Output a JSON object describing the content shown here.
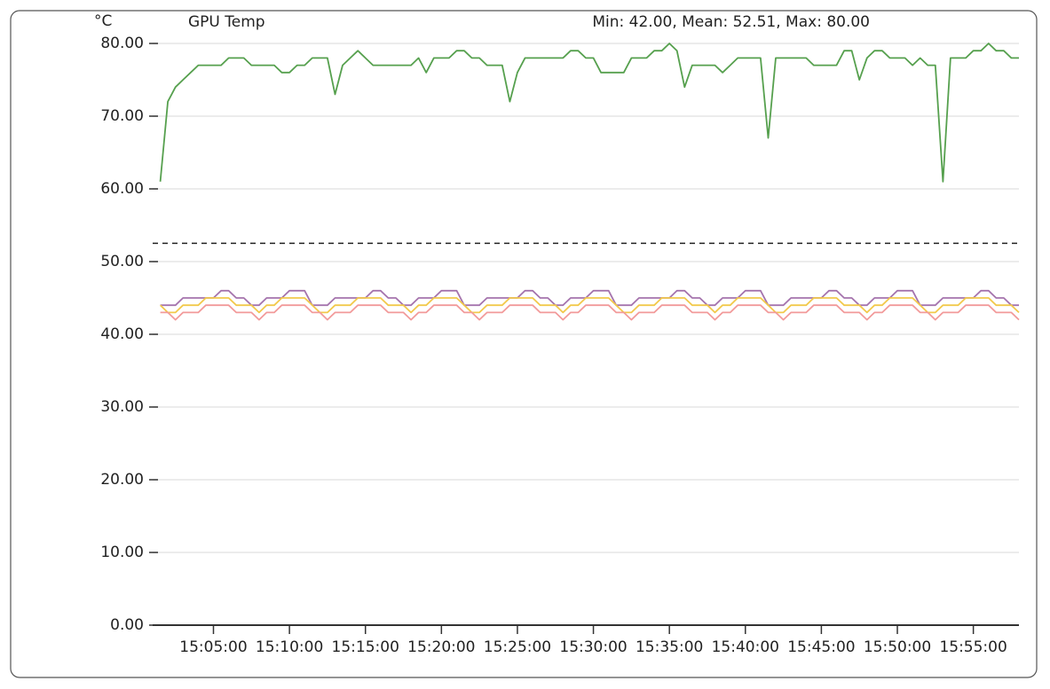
{
  "chart_data": {
    "type": "line",
    "title": "GPU Temp",
    "ylabel": "°C",
    "stats": "Min: 42.00, Mean: 52.51, Max: 80.00",
    "mean": 52.51,
    "xlim": [
      "15:01:00",
      "15:58:00"
    ],
    "xticks": [
      "15:05:00",
      "15:10:00",
      "15:15:00",
      "15:20:00",
      "15:25:00",
      "15:30:00",
      "15:35:00",
      "15:40:00",
      "15:45:00",
      "15:50:00",
      "15:55:00"
    ],
    "ylim": [
      0,
      80
    ],
    "yticks": [
      {
        "value": 0,
        "label": "0.00"
      },
      {
        "value": 10,
        "label": "10.00"
      },
      {
        "value": 20,
        "label": "20.00"
      },
      {
        "value": 30,
        "label": "30.00"
      },
      {
        "value": 40,
        "label": "40.00"
      },
      {
        "value": 50,
        "label": "50.00"
      },
      {
        "value": 60,
        "label": "60.00"
      },
      {
        "value": 70,
        "label": "70.00"
      },
      {
        "value": 80,
        "label": "80.00"
      }
    ],
    "grid": true,
    "x": [
      "15:01:30",
      "15:02:00",
      "15:02:30",
      "15:03:00",
      "15:03:30",
      "15:04:00",
      "15:04:30",
      "15:05:00",
      "15:05:30",
      "15:06:00",
      "15:06:30",
      "15:07:00",
      "15:07:30",
      "15:08:00",
      "15:08:30",
      "15:09:00",
      "15:09:30",
      "15:10:00",
      "15:10:30",
      "15:11:00",
      "15:11:30",
      "15:12:00",
      "15:12:30",
      "15:13:00",
      "15:13:30",
      "15:14:00",
      "15:14:30",
      "15:15:00",
      "15:15:30",
      "15:16:00",
      "15:16:30",
      "15:17:00",
      "15:17:30",
      "15:18:00",
      "15:18:30",
      "15:19:00",
      "15:19:30",
      "15:20:00",
      "15:20:30",
      "15:21:00",
      "15:21:30",
      "15:22:00",
      "15:22:30",
      "15:23:00",
      "15:23:30",
      "15:24:00",
      "15:24:30",
      "15:25:00",
      "15:25:30",
      "15:26:00",
      "15:26:30",
      "15:27:00",
      "15:27:30",
      "15:28:00",
      "15:28:30",
      "15:29:00",
      "15:29:30",
      "15:30:00",
      "15:30:30",
      "15:31:00",
      "15:31:30",
      "15:32:00",
      "15:32:30",
      "15:33:00",
      "15:33:30",
      "15:34:00",
      "15:34:30",
      "15:35:00",
      "15:35:30",
      "15:36:00",
      "15:36:30",
      "15:37:00",
      "15:37:30",
      "15:38:00",
      "15:38:30",
      "15:39:00",
      "15:39:30",
      "15:40:00",
      "15:40:30",
      "15:41:00",
      "15:41:30",
      "15:42:00",
      "15:42:30",
      "15:43:00",
      "15:43:30",
      "15:44:00",
      "15:44:30",
      "15:45:00",
      "15:45:30",
      "15:46:00",
      "15:46:30",
      "15:47:00",
      "15:47:30",
      "15:48:00",
      "15:48:30",
      "15:49:00",
      "15:49:30",
      "15:50:00",
      "15:50:30",
      "15:51:00",
      "15:51:30",
      "15:52:00",
      "15:52:30",
      "15:53:00",
      "15:53:30",
      "15:54:00",
      "15:54:30",
      "15:55:00",
      "15:55:30",
      "15:56:00",
      "15:56:30",
      "15:57:00",
      "15:57:30",
      "15:58:00"
    ],
    "series": [
      {
        "color": "#a574ad",
        "values": [
          44,
          44,
          44,
          45,
          45,
          45,
          45,
          45,
          46,
          46,
          45,
          45,
          44,
          44,
          45,
          45,
          45,
          46,
          46,
          46,
          44,
          44,
          44,
          45,
          45,
          45,
          45,
          45,
          46,
          46,
          45,
          45,
          44,
          44,
          45,
          45,
          45,
          46,
          46,
          46,
          44,
          44,
          44,
          45,
          45,
          45,
          45,
          45,
          46,
          46,
          45,
          45,
          44,
          44,
          45,
          45,
          45,
          46,
          46,
          46,
          44,
          44,
          44,
          45,
          45,
          45,
          45,
          45,
          46,
          46,
          45,
          45,
          44,
          44,
          45,
          45,
          45,
          46,
          46,
          46,
          44,
          44,
          44,
          45,
          45,
          45,
          45,
          45,
          46,
          46,
          45,
          45,
          44,
          44,
          45,
          45,
          45,
          46,
          46,
          46,
          44,
          44,
          44,
          45,
          45,
          45,
          45,
          45,
          46,
          46,
          45,
          45,
          44,
          44
        ]
      },
      {
        "color": "#f2c94c",
        "values": [
          44,
          43,
          43,
          44,
          44,
          44,
          45,
          45,
          45,
          45,
          44,
          44,
          44,
          43,
          44,
          44,
          45,
          45,
          45,
          45,
          44,
          43,
          43,
          44,
          44,
          44,
          45,
          45,
          45,
          45,
          44,
          44,
          44,
          43,
          44,
          44,
          45,
          45,
          45,
          45,
          44,
          43,
          43,
          44,
          44,
          44,
          45,
          45,
          45,
          45,
          44,
          44,
          44,
          43,
          44,
          44,
          45,
          45,
          45,
          45,
          44,
          43,
          43,
          44,
          44,
          44,
          45,
          45,
          45,
          45,
          44,
          44,
          44,
          43,
          44,
          44,
          45,
          45,
          45,
          45,
          44,
          43,
          43,
          44,
          44,
          44,
          45,
          45,
          45,
          45,
          44,
          44,
          44,
          43,
          44,
          44,
          45,
          45,
          45,
          45,
          44,
          43,
          43,
          44,
          44,
          44,
          45,
          45,
          45,
          45,
          44,
          44,
          44,
          43
        ]
      },
      {
        "color": "#f29a9a",
        "values": [
          43,
          43,
          42,
          43,
          43,
          43,
          44,
          44,
          44,
          44,
          43,
          43,
          43,
          42,
          43,
          43,
          44,
          44,
          44,
          44,
          43,
          43,
          42,
          43,
          43,
          43,
          44,
          44,
          44,
          44,
          43,
          43,
          43,
          42,
          43,
          43,
          44,
          44,
          44,
          44,
          43,
          43,
          42,
          43,
          43,
          43,
          44,
          44,
          44,
          44,
          43,
          43,
          43,
          42,
          43,
          43,
          44,
          44,
          44,
          44,
          43,
          43,
          42,
          43,
          43,
          43,
          44,
          44,
          44,
          44,
          43,
          43,
          43,
          42,
          43,
          43,
          44,
          44,
          44,
          44,
          43,
          43,
          42,
          43,
          43,
          43,
          44,
          44,
          44,
          44,
          43,
          43,
          43,
          42,
          43,
          43,
          44,
          44,
          44,
          44,
          43,
          43,
          42,
          43,
          43,
          43,
          44,
          44,
          44,
          44,
          43,
          43,
          43,
          42
        ]
      },
      {
        "color": "#56a04e",
        "values": [
          61,
          72,
          74,
          75,
          76,
          77,
          77,
          77,
          77,
          78,
          78,
          78,
          77,
          77,
          77,
          77,
          76,
          76,
          77,
          77,
          78,
          78,
          78,
          73,
          77,
          78,
          79,
          78,
          77,
          77,
          77,
          77,
          77,
          77,
          78,
          76,
          78,
          78,
          78,
          79,
          79,
          78,
          78,
          77,
          77,
          77,
          72,
          76,
          78,
          78,
          78,
          78,
          78,
          78,
          79,
          79,
          78,
          78,
          76,
          76,
          76,
          76,
          78,
          78,
          78,
          79,
          79,
          80,
          79,
          74,
          77,
          77,
          77,
          77,
          76,
          77,
          78,
          78,
          78,
          78,
          67,
          78,
          78,
          78,
          78,
          78,
          77,
          77,
          77,
          77,
          79,
          79,
          75,
          78,
          79,
          79,
          78,
          78,
          78,
          77,
          78,
          77,
          77,
          61,
          78,
          78,
          78,
          79,
          79,
          80,
          79,
          79,
          78,
          78
        ]
      }
    ]
  }
}
